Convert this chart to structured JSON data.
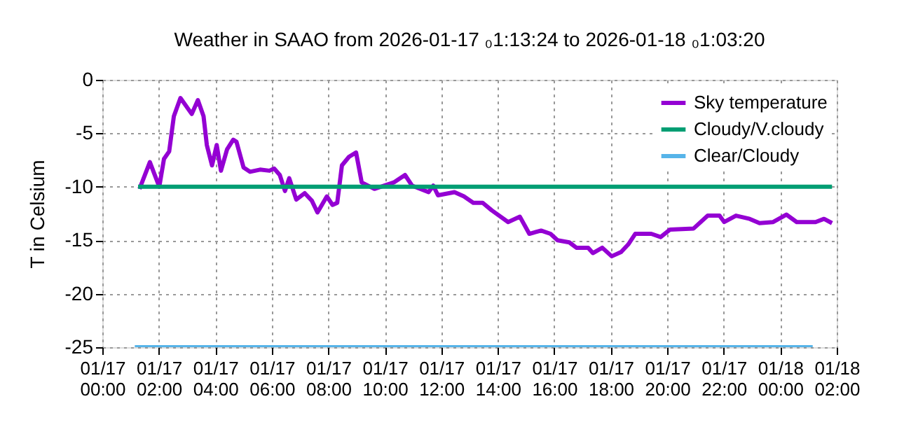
{
  "chart_data": {
    "type": "line",
    "title": "Weather in SAAO from 2026-01-17 ₀1:13:24 to 2026-01-18 ₀1:03:20",
    "ylabel": "T in Celsium",
    "xlim": [
      "2026-01-17T00:00",
      "2026-01-18T02:00"
    ],
    "xticks": [
      {
        "value": "2026-01-17T00:00",
        "label": "01/17\n00:00"
      },
      {
        "value": "2026-01-17T02:00",
        "label": "01/17\n02:00"
      },
      {
        "value": "2026-01-17T04:00",
        "label": "01/17\n04:00"
      },
      {
        "value": "2026-01-17T06:00",
        "label": "01/17\n06:00"
      },
      {
        "value": "2026-01-17T08:00",
        "label": "01/17\n08:00"
      },
      {
        "value": "2026-01-17T10:00",
        "label": "01/17\n10:00"
      },
      {
        "value": "2026-01-17T12:00",
        "label": "01/17\n12:00"
      },
      {
        "value": "2026-01-17T14:00",
        "label": "01/17\n14:00"
      },
      {
        "value": "2026-01-17T16:00",
        "label": "01/17\n16:00"
      },
      {
        "value": "2026-01-17T18:00",
        "label": "01/17\n18:00"
      },
      {
        "value": "2026-01-17T20:00",
        "label": "01/17\n20:00"
      },
      {
        "value": "2026-01-17T22:00",
        "label": "01/17\n22:00"
      },
      {
        "value": "2026-01-18T00:00",
        "label": "01/18\n00:00"
      },
      {
        "value": "2026-01-18T02:00",
        "label": "01/18\n02:00"
      }
    ],
    "ylim": [
      -25,
      0
    ],
    "yticks": [
      -25,
      -20,
      -15,
      -10,
      -5,
      0
    ],
    "grid": true,
    "legend": "top right",
    "line_style": "solid",
    "marker": "none",
    "series": [
      {
        "name": "Sky temperature",
        "color": "#9400d3",
        "x": [
          "2026-01-17T01:19",
          "2026-01-17T01:41",
          "2026-01-17T02:01",
          "2026-01-17T02:11",
          "2026-01-17T02:22",
          "2026-01-17T02:32",
          "2026-01-17T02:46",
          "2026-01-17T03:10",
          "2026-01-17T03:23",
          "2026-01-17T03:35",
          "2026-01-17T03:42",
          "2026-01-17T03:53",
          "2026-01-17T04:03",
          "2026-01-17T04:12",
          "2026-01-17T04:25",
          "2026-01-17T04:38",
          "2026-01-17T04:45",
          "2026-01-17T05:00",
          "2026-01-17T05:14",
          "2026-01-17T05:35",
          "2026-01-17T05:55",
          "2026-01-17T06:05",
          "2026-01-17T06:17",
          "2026-01-17T06:28",
          "2026-01-17T06:37",
          "2026-01-17T06:52",
          "2026-01-17T07:10",
          "2026-01-17T07:25",
          "2026-01-17T07:37",
          "2026-01-17T07:57",
          "2026-01-17T08:09",
          "2026-01-17T08:19",
          "2026-01-17T08:29",
          "2026-01-17T08:44",
          "2026-01-17T08:59",
          "2026-01-17T09:11",
          "2026-01-17T09:38",
          "2026-01-17T10:19",
          "2026-01-17T10:43",
          "2026-01-17T10:58",
          "2026-01-17T11:33",
          "2026-01-17T11:43",
          "2026-01-17T11:53",
          "2026-01-17T12:28",
          "2026-01-17T12:48",
          "2026-01-17T13:08",
          "2026-01-17T13:28",
          "2026-01-17T13:47",
          "2026-01-17T14:22",
          "2026-01-17T14:47",
          "2026-01-17T15:07",
          "2026-01-17T15:32",
          "2026-01-17T15:52",
          "2026-01-17T16:07",
          "2026-01-17T16:32",
          "2026-01-17T16:47",
          "2026-01-17T17:12",
          "2026-01-17T17:22",
          "2026-01-17T17:42",
          "2026-01-17T18:02",
          "2026-01-17T18:22",
          "2026-01-17T18:37",
          "2026-01-17T18:52",
          "2026-01-17T19:26",
          "2026-01-17T19:46",
          "2026-01-17T20:06",
          "2026-01-17T20:56",
          "2026-01-17T21:26",
          "2026-01-17T21:51",
          "2026-01-17T22:01",
          "2026-01-17T22:26",
          "2026-01-17T22:55",
          "2026-01-17T23:16",
          "2026-01-17T23:45",
          "2026-01-18T00:13",
          "2026-01-18T00:35",
          "2026-01-18T01:15",
          "2026-01-18T01:33",
          "2026-01-18T01:50"
        ],
        "values": [
          -10.2,
          -7.7,
          -10.0,
          -7.4,
          -6.7,
          -3.4,
          -1.7,
          -3.2,
          -1.9,
          -3.4,
          -6.1,
          -8.0,
          -6.1,
          -8.5,
          -6.5,
          -5.6,
          -5.8,
          -8.2,
          -8.6,
          -8.4,
          -8.5,
          -8.3,
          -8.9,
          -10.4,
          -9.2,
          -11.2,
          -10.6,
          -11.3,
          -12.4,
          -10.9,
          -11.7,
          -11.5,
          -8.0,
          -7.2,
          -6.8,
          -9.6,
          -10.2,
          -9.6,
          -8.9,
          -9.9,
          -10.5,
          -9.9,
          -10.8,
          -10.5,
          -10.9,
          -11.5,
          -11.5,
          -12.2,
          -13.3,
          -12.8,
          -14.4,
          -14.1,
          -14.4,
          -15.0,
          -15.2,
          -15.7,
          -15.7,
          -16.2,
          -15.7,
          -16.5,
          -16.1,
          -15.4,
          -14.4,
          -14.4,
          -14.7,
          -14.0,
          -13.9,
          -12.7,
          -12.7,
          -13.3,
          -12.7,
          -13.0,
          -13.4,
          -13.3,
          -12.6,
          -13.3,
          -13.3,
          -13.0,
          -13.4
        ]
      },
      {
        "name": "Cloudy/V.cloudy",
        "color": "#009e73",
        "x": [
          "2026-01-17T01:16",
          "2026-01-18T01:50"
        ],
        "values": [
          -10,
          -10
        ]
      },
      {
        "name": "Clear/Cloudy",
        "color": "#56b4e9",
        "x": [
          "2026-01-17T01:09",
          "2026-01-18T01:09"
        ],
        "values": [
          -25,
          -25
        ]
      }
    ]
  }
}
